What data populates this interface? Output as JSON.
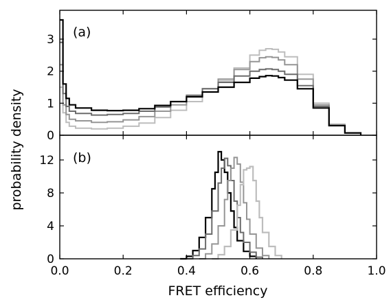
{
  "chart_data": [
    {
      "panel": "a",
      "type": "line",
      "panel_label": "(a)",
      "xlabel": "FRET efficiency",
      "ylabel": "probability density",
      "xlim": [
        0.0,
        1.0
      ],
      "ylim": [
        0.0,
        3.9
      ],
      "xticks": [
        "0.0",
        "0.2",
        "0.4",
        "0.6",
        "0.8",
        "1.0"
      ],
      "yticks": [
        "0",
        "1",
        "2",
        "3"
      ],
      "grid": false,
      "style": "step",
      "series": [
        {
          "color": "#bdbdbd",
          "x": [
            0.0,
            0.01,
            0.02,
            0.03,
            0.05,
            0.1,
            0.15,
            0.2,
            0.25,
            0.3,
            0.35,
            0.4,
            0.45,
            0.5,
            0.55,
            0.6,
            0.63,
            0.65,
            0.67,
            0.69,
            0.71,
            0.75,
            0.8,
            0.85,
            0.9,
            0.95
          ],
          "y": [
            1.5,
            0.7,
            0.4,
            0.28,
            0.22,
            0.2,
            0.22,
            0.28,
            0.38,
            0.55,
            0.78,
            1.05,
            1.35,
            1.7,
            2.1,
            2.5,
            2.65,
            2.7,
            2.68,
            2.6,
            2.45,
            1.9,
            1.0,
            0.35,
            0.08,
            0.01
          ]
        },
        {
          "color": "#959595",
          "x": [
            0.0,
            0.01,
            0.02,
            0.03,
            0.05,
            0.1,
            0.15,
            0.2,
            0.25,
            0.3,
            0.35,
            0.4,
            0.45,
            0.5,
            0.55,
            0.6,
            0.63,
            0.65,
            0.67,
            0.69,
            0.71,
            0.75,
            0.8,
            0.85,
            0.9,
            0.95
          ],
          "y": [
            2.2,
            0.95,
            0.65,
            0.5,
            0.45,
            0.4,
            0.42,
            0.48,
            0.58,
            0.75,
            0.95,
            1.2,
            1.45,
            1.75,
            2.05,
            2.3,
            2.42,
            2.45,
            2.43,
            2.35,
            2.2,
            1.75,
            0.95,
            0.32,
            0.07,
            0.01
          ]
        },
        {
          "color": "#6b6b6b",
          "x": [
            0.0,
            0.01,
            0.02,
            0.03,
            0.05,
            0.1,
            0.15,
            0.2,
            0.25,
            0.3,
            0.35,
            0.4,
            0.45,
            0.5,
            0.55,
            0.6,
            0.63,
            0.65,
            0.67,
            0.69,
            0.71,
            0.75,
            0.8,
            0.85,
            0.9,
            0.95
          ],
          "y": [
            2.9,
            1.3,
            0.9,
            0.75,
            0.68,
            0.63,
            0.65,
            0.68,
            0.75,
            0.88,
            1.05,
            1.25,
            1.45,
            1.65,
            1.85,
            2.0,
            2.05,
            2.07,
            2.05,
            2.0,
            1.9,
            1.55,
            0.9,
            0.3,
            0.07,
            0.01
          ]
        },
        {
          "color": "#000000",
          "x": [
            0.0,
            0.01,
            0.02,
            0.03,
            0.05,
            0.1,
            0.15,
            0.2,
            0.25,
            0.3,
            0.35,
            0.4,
            0.45,
            0.5,
            0.55,
            0.6,
            0.63,
            0.65,
            0.67,
            0.69,
            0.71,
            0.75,
            0.8,
            0.85,
            0.9,
            0.95
          ],
          "y": [
            3.6,
            1.6,
            1.15,
            0.95,
            0.85,
            0.78,
            0.77,
            0.78,
            0.83,
            0.93,
            1.05,
            1.2,
            1.35,
            1.5,
            1.65,
            1.78,
            1.83,
            1.86,
            1.85,
            1.8,
            1.72,
            1.45,
            0.85,
            0.3,
            0.07,
            0.01
          ]
        }
      ]
    },
    {
      "panel": "b",
      "type": "line",
      "panel_label": "(b)",
      "xlabel": "FRET efficiency",
      "ylabel": "probability density",
      "xlim": [
        0.0,
        1.0
      ],
      "ylim": [
        0.0,
        15.0
      ],
      "xticks": [
        "0.0",
        "0.2",
        "0.4",
        "0.6",
        "0.8",
        "1.0"
      ],
      "yticks": [
        "0",
        "4",
        "8",
        "12"
      ],
      "grid": false,
      "style": "step",
      "series": [
        {
          "color": "#000000",
          "x": [
            0.38,
            0.4,
            0.42,
            0.44,
            0.46,
            0.48,
            0.49,
            0.5,
            0.51,
            0.52,
            0.53,
            0.54,
            0.55,
            0.56,
            0.58,
            0.6,
            0.62
          ],
          "y": [
            0.0,
            0.3,
            1.0,
            2.6,
            5.0,
            8.5,
            10.5,
            13.0,
            12.0,
            10.5,
            8.0,
            5.8,
            3.8,
            2.2,
            0.9,
            0.3,
            0.0
          ]
        },
        {
          "color": "#6b6b6b",
          "x": [
            0.4,
            0.42,
            0.44,
            0.46,
            0.48,
            0.5,
            0.51,
            0.52,
            0.53,
            0.54,
            0.55,
            0.56,
            0.57,
            0.58,
            0.6,
            0.62,
            0.64
          ],
          "y": [
            0.0,
            0.4,
            1.2,
            3.0,
            5.8,
            9.2,
            11.0,
            12.2,
            11.3,
            9.5,
            7.0,
            5.0,
            3.2,
            2.0,
            0.8,
            0.2,
            0.0
          ]
        },
        {
          "color": "#959595",
          "x": [
            0.44,
            0.46,
            0.48,
            0.5,
            0.52,
            0.53,
            0.54,
            0.55,
            0.56,
            0.57,
            0.58,
            0.59,
            0.6,
            0.62,
            0.64,
            0.66
          ],
          "y": [
            0.0,
            0.6,
            1.8,
            4.0,
            7.2,
            9.5,
            11.0,
            12.3,
            11.5,
            9.3,
            6.8,
            4.8,
            3.0,
            1.3,
            0.4,
            0.0
          ]
        },
        {
          "color": "#bdbdbd",
          "x": [
            0.48,
            0.5,
            0.52,
            0.54,
            0.56,
            0.57,
            0.58,
            0.59,
            0.6,
            0.61,
            0.62,
            0.63,
            0.64,
            0.66,
            0.68,
            0.7
          ],
          "y": [
            0.0,
            0.5,
            1.5,
            3.5,
            6.5,
            9.0,
            10.8,
            11.0,
            11.2,
            9.5,
            7.0,
            5.0,
            3.2,
            1.5,
            0.4,
            0.0
          ]
        }
      ]
    }
  ]
}
